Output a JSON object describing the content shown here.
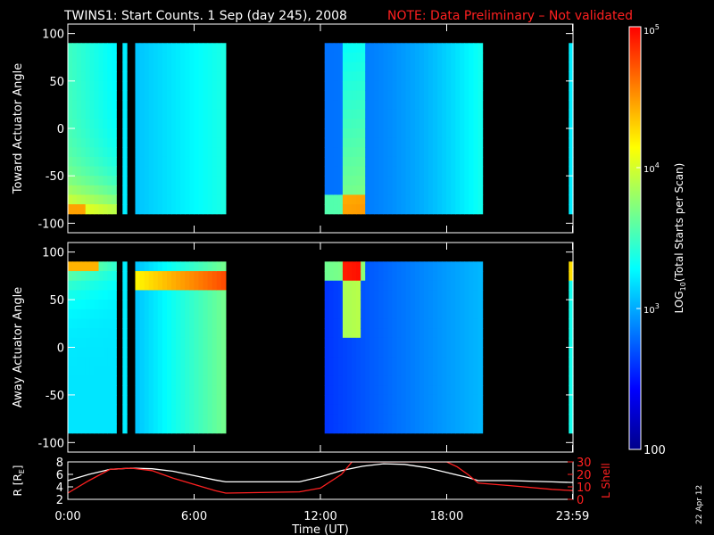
{
  "title": {
    "main": "TWINS1: Start Counts.  1 Sep (day 245), 2008",
    "note": "NOTE: Data Preliminary – Not validated"
  },
  "side_stamp": "22 Apr 12",
  "colors": {
    "background": "#000000",
    "axis": "#ffffff",
    "note": "#ff2020",
    "lshell": "#ff2020",
    "radius": "#ffffff"
  },
  "chart_data": [
    {
      "type": "heatmap",
      "ylabel": "Toward Actuator Angle",
      "ylim": [
        -110,
        110
      ],
      "yticks": [
        100,
        50,
        0,
        -50,
        -100
      ],
      "xlim_hours": [
        0,
        24
      ],
      "data_ylim": [
        -90,
        90
      ],
      "segments": [
        {
          "start_hour": 0.0,
          "end_hour": 2.3,
          "profile": "edge-warm-bottom"
        },
        {
          "start_hour": 2.6,
          "end_hour": 2.8,
          "profile": "cool"
        },
        {
          "start_hour": 3.2,
          "end_hour": 7.5,
          "profile": "cool"
        },
        {
          "start_hour": 12.2,
          "end_hour": 19.7,
          "profile": "warm-streak-bottom"
        },
        {
          "start_hour": 23.8,
          "end_hour": 24.0,
          "profile": "cool"
        }
      ]
    },
    {
      "type": "heatmap",
      "ylabel": "Away Actuator Angle",
      "ylim": [
        -110,
        110
      ],
      "yticks": [
        100,
        50,
        0,
        -50,
        -100
      ],
      "xlim_hours": [
        0,
        24
      ],
      "data_ylim": [
        -90,
        90
      ],
      "segments": [
        {
          "start_hour": 0.0,
          "end_hour": 2.3,
          "profile": "edge-warm-top"
        },
        {
          "start_hour": 2.6,
          "end_hour": 2.8,
          "profile": "cool"
        },
        {
          "start_hour": 3.2,
          "end_hour": 7.5,
          "profile": "warm-top-band"
        },
        {
          "start_hour": 12.2,
          "end_hour": 19.7,
          "profile": "warm-streak-top"
        },
        {
          "start_hour": 23.8,
          "end_hour": 24.0,
          "profile": "warm-top-edge"
        }
      ]
    },
    {
      "type": "line",
      "ylabel_left": "R [R",
      "ylabel_left_sub": "E",
      "ylabel_left_close": "]",
      "ylabel_right": "L Shell",
      "ylim_left": [
        2,
        8
      ],
      "yticks_left": [
        2,
        4,
        6,
        8
      ],
      "ylim_right": [
        0,
        30
      ],
      "yticks_right": [
        0,
        10,
        20,
        30
      ],
      "xlabel": "Time (UT)",
      "xticks": [
        {
          "hour": 0,
          "label": "0:00"
        },
        {
          "hour": 6,
          "label": "6:00"
        },
        {
          "hour": 12,
          "label": "12:00"
        },
        {
          "hour": 18,
          "label": "18:00"
        },
        {
          "hour": 23.98,
          "label": "23:59"
        }
      ],
      "series": [
        {
          "axis": "left",
          "color": "#ffffff",
          "x": [
            0,
            1,
            2,
            3,
            4,
            5,
            6,
            7,
            7.5,
            9,
            11,
            12,
            13,
            14,
            15,
            16,
            17,
            18,
            19,
            19.5,
            21,
            23,
            24
          ],
          "y": [
            5.0,
            6.0,
            6.8,
            7.0,
            6.9,
            6.5,
            5.8,
            5.1,
            4.8,
            4.8,
            4.8,
            5.6,
            6.6,
            7.3,
            7.7,
            7.6,
            7.1,
            6.3,
            5.5,
            5.0,
            5.0,
            4.8,
            4.7
          ]
        },
        {
          "axis": "right",
          "color": "#ff2020",
          "x": [
            0,
            1,
            2,
            3,
            4,
            5,
            6,
            7,
            7.5,
            11,
            12,
            13,
            13.5,
            18.0,
            18.5,
            19,
            19.5,
            21,
            23,
            24
          ],
          "y": [
            5,
            15,
            24,
            25,
            23,
            17,
            12,
            7,
            5,
            6,
            9,
            20,
            30,
            30,
            26,
            20,
            13,
            11,
            8,
            7
          ]
        }
      ]
    }
  ],
  "colorbar": {
    "label_prefix": "LOG",
    "label_sub": "10",
    "label_suffix": "(Total Starts per Scan)",
    "ticks": [
      {
        "value": 100,
        "text": "100"
      },
      {
        "value": 1000,
        "text": "10",
        "sup": "3"
      },
      {
        "value": 10000,
        "text": "10",
        "sup": "4"
      },
      {
        "value": 100000,
        "text": "10",
        "sup": "5"
      }
    ],
    "range": [
      100,
      100000
    ],
    "stops": [
      "#00008a",
      "#0000ff",
      "#0080ff",
      "#00ffff",
      "#80ff80",
      "#ffff00",
      "#ff8000",
      "#ff0000"
    ]
  }
}
